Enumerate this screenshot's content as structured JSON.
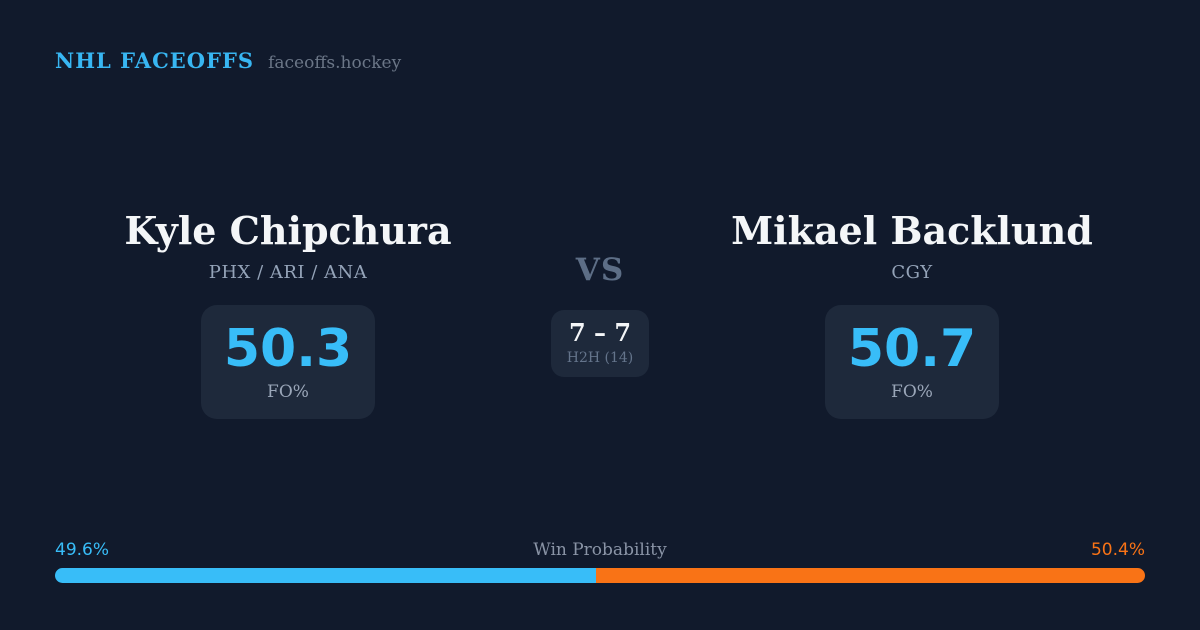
{
  "brand": {
    "title": "NHL FACEOFFS",
    "domain": "faceoffs.hockey"
  },
  "matchup": {
    "left_player": {
      "name": "Kyle Chipchura",
      "teams": "PHX / ARI / ANA",
      "stat_value": "50.3",
      "stat_label": "FO%"
    },
    "right_player": {
      "name": "Mikael Backlund",
      "teams": "CGY",
      "stat_value": "50.7",
      "stat_label": "FO%"
    },
    "versus": {
      "label": "VS",
      "h2h_score": "7 – 7",
      "h2h_label": "H2H (14)"
    }
  },
  "win_probability": {
    "title": "Win Probability",
    "left_pct_label": "49.6%",
    "right_pct_label": "50.4%",
    "left_pct": 49.6,
    "right_pct": 50.4
  },
  "colors": {
    "background": "#111a2c",
    "card_background": "#1e293b",
    "accent_blue": "#38bdf8",
    "accent_orange": "#f97316",
    "heading_white": "#f4f6f8",
    "muted_gray": "#94a3b8"
  }
}
